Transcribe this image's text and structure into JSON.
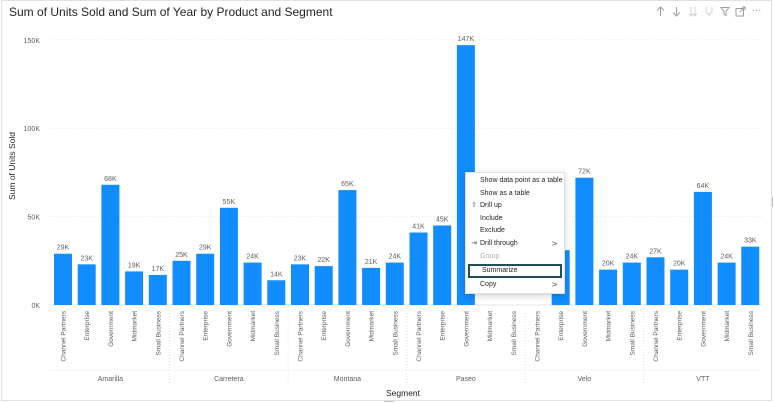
{
  "title": "Sum of Units Sold and Sum of Year by Product and Segment",
  "toolbar": {
    "icons": [
      "drill-up-arrow-icon",
      "drill-down-arrow-icon",
      "expand-next-level-icon",
      "expand-all-icon",
      "filter-icon",
      "focus-mode-icon",
      "more-options-icon"
    ],
    "more_label": "···"
  },
  "context_menu": {
    "items": [
      {
        "label": "Show data point as a table",
        "icon": "",
        "chevron": "",
        "state": "normal"
      },
      {
        "label": "Show as a table",
        "icon": "",
        "chevron": "",
        "state": "normal"
      },
      {
        "label": "Drill up",
        "icon": "drill-up-icon",
        "chevron": "",
        "state": "normal"
      },
      {
        "label": "Include",
        "icon": "",
        "chevron": "",
        "state": "normal"
      },
      {
        "label": "Exclude",
        "icon": "",
        "chevron": "",
        "state": "normal"
      },
      {
        "label": "Drill through",
        "icon": "drill-through-icon",
        "chevron": ">",
        "state": "normal"
      },
      {
        "label": "Group",
        "icon": "",
        "chevron": "",
        "state": "disabled"
      },
      {
        "label": "Summarize",
        "icon": "",
        "chevron": "",
        "state": "highlight"
      },
      {
        "label": "Copy",
        "icon": "",
        "chevron": ">",
        "state": "normal"
      }
    ]
  },
  "colors": {
    "bar": "#118dff",
    "axis_text": "#605e5c",
    "grid": "#e6e6e6",
    "highlight_border": "#1f4e57"
  },
  "chart_data": {
    "type": "bar",
    "xlabel": "Segment",
    "ylabel": "Sum of Units Sold",
    "ylim": [
      0,
      155000
    ],
    "yticks": [
      0,
      50000,
      100000,
      150000
    ],
    "ytick_labels": [
      "0K",
      "50K",
      "100K",
      "150K"
    ],
    "grid": true,
    "groups": [
      {
        "name": "Amarilla",
        "bars": [
          {
            "segment": "Channel Partners",
            "value": 29000,
            "label": "29K"
          },
          {
            "segment": "Enterprise",
            "value": 23000,
            "label": "23K"
          },
          {
            "segment": "Government",
            "value": 68000,
            "label": "68K"
          },
          {
            "segment": "Midmarket",
            "value": 19000,
            "label": "19K"
          },
          {
            "segment": "Small Business",
            "value": 17000,
            "label": "17K"
          }
        ]
      },
      {
        "name": "Carretera",
        "bars": [
          {
            "segment": "Channel Partners",
            "value": 25000,
            "label": "25K"
          },
          {
            "segment": "Enterprise",
            "value": 29000,
            "label": "29K"
          },
          {
            "segment": "Government",
            "value": 55000,
            "label": "55K"
          },
          {
            "segment": "Midmarket",
            "value": 24000,
            "label": "24K"
          },
          {
            "segment": "Small Business",
            "value": 14000,
            "label": "14K"
          }
        ]
      },
      {
        "name": "Montana",
        "bars": [
          {
            "segment": "Channel Partners",
            "value": 23000,
            "label": "23K"
          },
          {
            "segment": "Enterprise",
            "value": 22000,
            "label": "22K"
          },
          {
            "segment": "Government",
            "value": 65000,
            "label": "65K"
          },
          {
            "segment": "Midmarket",
            "value": 21000,
            "label": "21K"
          },
          {
            "segment": "Small Business",
            "value": 24000,
            "label": "24K"
          }
        ]
      },
      {
        "name": "Paseo",
        "bars": [
          {
            "segment": "Channel Partners",
            "value": 41000,
            "label": "41K"
          },
          {
            "segment": "Enterprise",
            "value": 45000,
            "label": "45K"
          },
          {
            "segment": "Government",
            "value": 147000,
            "label": "147K"
          },
          {
            "segment": "Midmarket",
            "value": 0,
            "label": ""
          },
          {
            "segment": "Small Business",
            "value": 0,
            "label": ""
          }
        ]
      },
      {
        "name": "Velo",
        "bars": [
          {
            "segment": "Channel Partners",
            "value": 0,
            "label": ""
          },
          {
            "segment": "Enterprise",
            "value": 31000,
            "label": ""
          },
          {
            "segment": "Government",
            "value": 72000,
            "label": "72K"
          },
          {
            "segment": "Midmarket",
            "value": 20000,
            "label": "20K"
          },
          {
            "segment": "Small Business",
            "value": 24000,
            "label": "24K"
          }
        ]
      },
      {
        "name": "VTT",
        "bars": [
          {
            "segment": "Channel Partners",
            "value": 27000,
            "label": "27K"
          },
          {
            "segment": "Enterprise",
            "value": 20000,
            "label": "20K"
          },
          {
            "segment": "Government",
            "value": 64000,
            "label": "64K"
          },
          {
            "segment": "Midmarket",
            "value": 24000,
            "label": "24K"
          },
          {
            "segment": "Small Business",
            "value": 33000,
            "label": "33K"
          }
        ]
      }
    ]
  }
}
